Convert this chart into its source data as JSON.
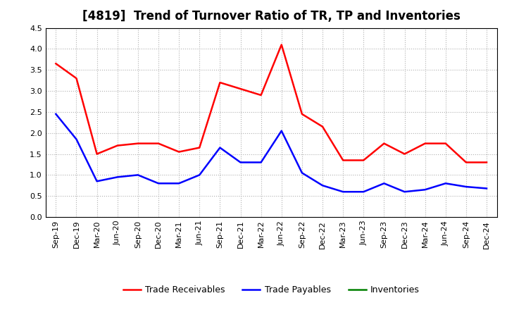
{
  "title": "[4819]  Trend of Turnover Ratio of TR, TP and Inventories",
  "x_labels": [
    "Sep-19",
    "Dec-19",
    "Mar-20",
    "Jun-20",
    "Sep-20",
    "Dec-20",
    "Mar-21",
    "Jun-21",
    "Sep-21",
    "Dec-21",
    "Mar-22",
    "Jun-22",
    "Sep-22",
    "Dec-22",
    "Mar-23",
    "Jun-23",
    "Sep-23",
    "Dec-23",
    "Mar-24",
    "Jun-24",
    "Sep-24",
    "Dec-24"
  ],
  "trade_receivables": [
    3.65,
    3.3,
    1.5,
    1.7,
    1.75,
    1.75,
    1.55,
    1.65,
    3.2,
    3.05,
    2.9,
    4.1,
    2.45,
    2.15,
    1.35,
    1.35,
    1.75,
    1.5,
    1.75,
    1.75,
    1.3,
    1.3
  ],
  "trade_payables": [
    2.45,
    1.85,
    0.85,
    0.95,
    1.0,
    0.8,
    0.8,
    1.0,
    1.65,
    1.3,
    1.3,
    2.05,
    1.05,
    0.75,
    0.6,
    0.6,
    0.8,
    0.6,
    0.65,
    0.8,
    0.72,
    0.68
  ],
  "inventories": [
    null,
    null,
    null,
    null,
    null,
    null,
    null,
    null,
    null,
    null,
    null,
    null,
    null,
    null,
    null,
    null,
    null,
    null,
    null,
    null,
    null,
    null
  ],
  "ylim": [
    0.0,
    4.5
  ],
  "yticks": [
    0.0,
    0.5,
    1.0,
    1.5,
    2.0,
    2.5,
    3.0,
    3.5,
    4.0,
    4.5
  ],
  "tr_color": "#ff0000",
  "tp_color": "#0000ff",
  "inv_color": "#008000",
  "bg_color": "#ffffff",
  "grid_color": "#b0b0b0",
  "title_fontsize": 12,
  "tick_fontsize": 8,
  "legend_labels": [
    "Trade Receivables",
    "Trade Payables",
    "Inventories"
  ],
  "legend_fontsize": 9
}
